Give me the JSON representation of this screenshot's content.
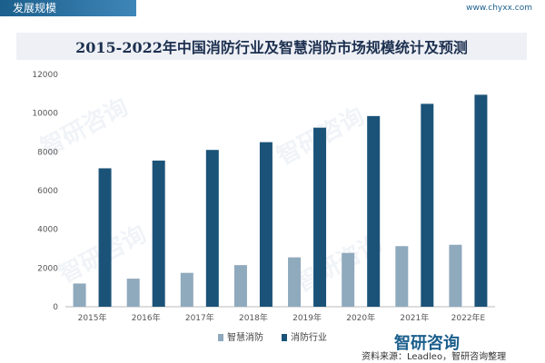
{
  "header": {
    "section_title": "发展规模",
    "site": "www.chyxx.com"
  },
  "chart_data": {
    "type": "bar",
    "title": "2015-2022年中国消防行业及智慧消防市场规模统计及预测",
    "categories": [
      "2015年",
      "2016年",
      "2017年",
      "2018年",
      "2019年",
      "2020年",
      "2021年",
      "2022年E"
    ],
    "series": [
      {
        "name": "智慧消防",
        "values": [
          1200,
          1450,
          1750,
          2150,
          2550,
          2780,
          3130,
          3200
        ],
        "color": "#8fa9bd"
      },
      {
        "name": "消防行业",
        "values": [
          7150,
          7550,
          8100,
          8500,
          9250,
          9850,
          10480,
          10950
        ],
        "color": "#1b5378"
      }
    ],
    "y_ticks": [
      "0",
      "2000",
      "4000",
      "6000",
      "8000",
      "10000",
      "12000"
    ],
    "ylim": [
      0,
      12000
    ],
    "grid": false,
    "legend_position": "bottom"
  },
  "footer": {
    "source": "资料来源：Leadleo，智研咨询整理",
    "brand": "智研咨询"
  }
}
